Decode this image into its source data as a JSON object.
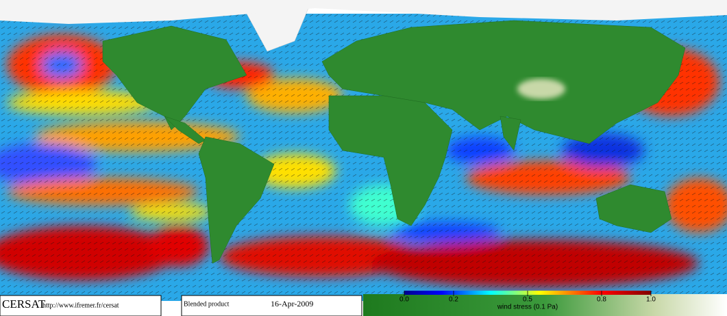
{
  "footer": {
    "logo": "CERSAT",
    "url": "http://www.ifremer.fr/cersat",
    "product": "Blended product",
    "date": "16-Apr-2009"
  },
  "colorbar": {
    "label": "wind stress (0.1 Pa)",
    "range": [
      0,
      1
    ],
    "ticks": [
      {
        "value": 0,
        "label": "0.0"
      },
      0.2,
      0.5,
      0.8,
      {
        "value": 1,
        "label": "1.0"
      }
    ]
  }
}
